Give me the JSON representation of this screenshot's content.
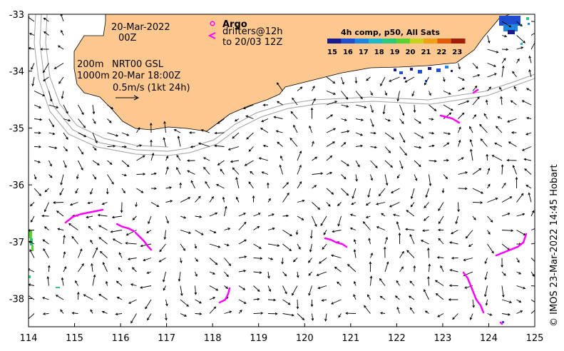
{
  "map": {
    "header": {
      "date": "20-Mar-2022",
      "time": "00Z"
    },
    "legend": {
      "argo_label": "Argo",
      "drifters_label": "drifters@12h",
      "drifters_to": "to 20/03 12Z",
      "isobath_200": "200m",
      "isobath_1000": "1000m",
      "product": "NRT00 GSL",
      "product_time": "20-Mar 18:00Z",
      "scale_vector": "0.5m/s (1kt 24h)"
    },
    "colorbar": {
      "title": "4h comp, p50, All Sats",
      "ticks": [
        "15",
        "16",
        "17",
        "18",
        "19",
        "20",
        "21",
        "22",
        "23"
      ],
      "colors": [
        "#1a1a8c",
        "#1f4fd1",
        "#1f86e0",
        "#22b8c8",
        "#2ec87a",
        "#5ad232",
        "#c8d21e",
        "#f0a014",
        "#e05a0a",
        "#a01e0a"
      ]
    },
    "x_ticks": [
      "114",
      "115",
      "116",
      "117",
      "118",
      "119",
      "120",
      "121",
      "122",
      "123",
      "124",
      "125"
    ],
    "y_ticks": [
      "-33",
      "-34",
      "-35",
      "-36",
      "-37",
      "-38"
    ],
    "credit": "© IMOS 23-Mar-2022 14:45 Hobart",
    "colors": {
      "land": "#fdc890",
      "drifter": "#ff00ff",
      "arrow": "#000000",
      "isobath": "#a0a0a0"
    }
  }
}
